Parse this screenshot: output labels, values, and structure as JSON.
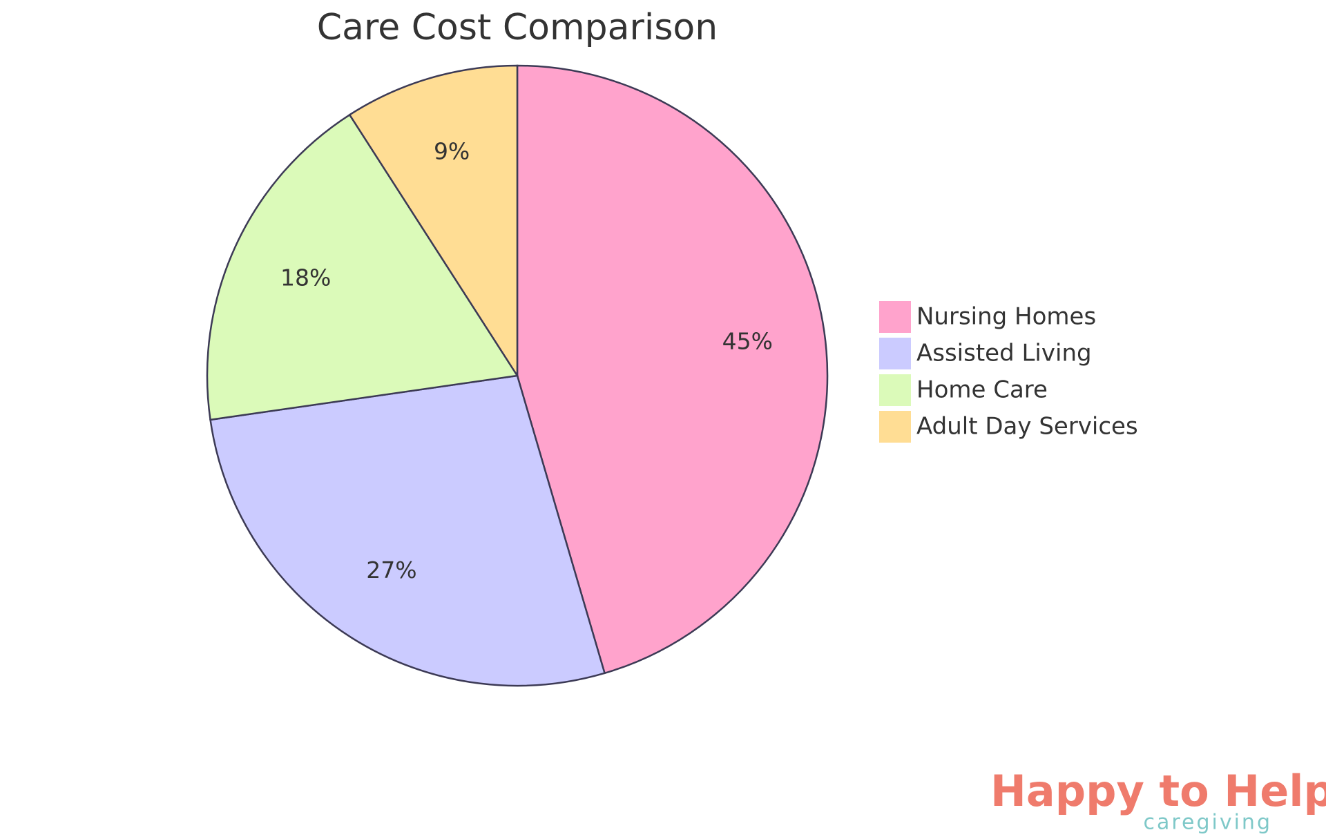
{
  "chart_data": {
    "type": "pie",
    "title": "Care Cost Comparison",
    "categories": [
      "Nursing Homes",
      "Assisted Living",
      "Home Care",
      "Adult Day Services"
    ],
    "values": [
      45,
      27,
      18,
      9
    ],
    "value_labels": [
      "45%",
      "27%",
      "18%",
      "9%"
    ],
    "colors": [
      "#ffa3cc",
      "#cbcbff",
      "#dbfab9",
      "#ffdd94"
    ],
    "legend": "right"
  },
  "logo": {
    "name": "Happy to Help",
    "tagline": "caregiving"
  }
}
